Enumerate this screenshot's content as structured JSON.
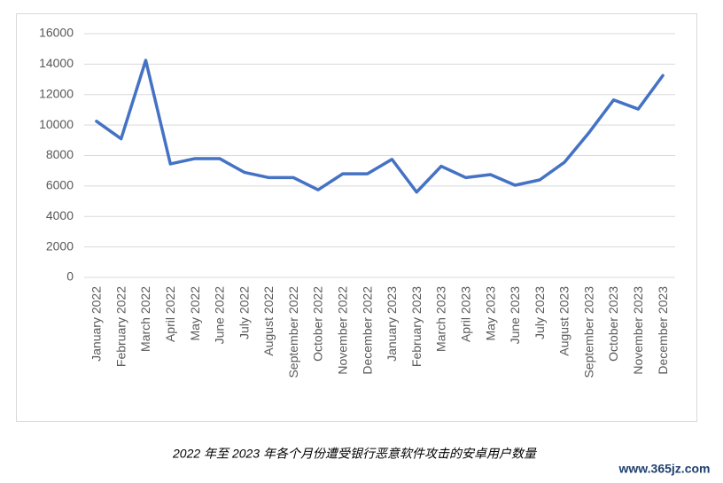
{
  "chart_data": {
    "type": "line",
    "categories": [
      "January 2022",
      "February 2022",
      "March 2022",
      "April 2022",
      "May 2022",
      "June 2022",
      "July 2022",
      "August 2022",
      "September 2022",
      "October 2022",
      "November 2022",
      "December 2022",
      "January 2023",
      "February 2023",
      "March 2023",
      "April 2023",
      "May 2023",
      "June 2023",
      "July 2023",
      "August 2023",
      "September 2023",
      "October 2023",
      "November 2023",
      "December 2023"
    ],
    "values": [
      10250,
      9100,
      14250,
      7450,
      7800,
      7800,
      6900,
      6550,
      6550,
      5750,
      6800,
      6800,
      7750,
      5600,
      7300,
      6550,
      6750,
      6050,
      6400,
      7550,
      9500,
      11650,
      11050,
      13250
    ],
    "color": "#4472c4",
    "ylim": [
      0,
      16000
    ],
    "yticks": [
      0,
      2000,
      4000,
      6000,
      8000,
      10000,
      12000,
      14000,
      16000
    ],
    "grid": true
  },
  "caption": "2022 年至 2023 年各个月份遭受银行恶意软件攻击的安卓用户数量",
  "watermark": "www.365jz.com"
}
